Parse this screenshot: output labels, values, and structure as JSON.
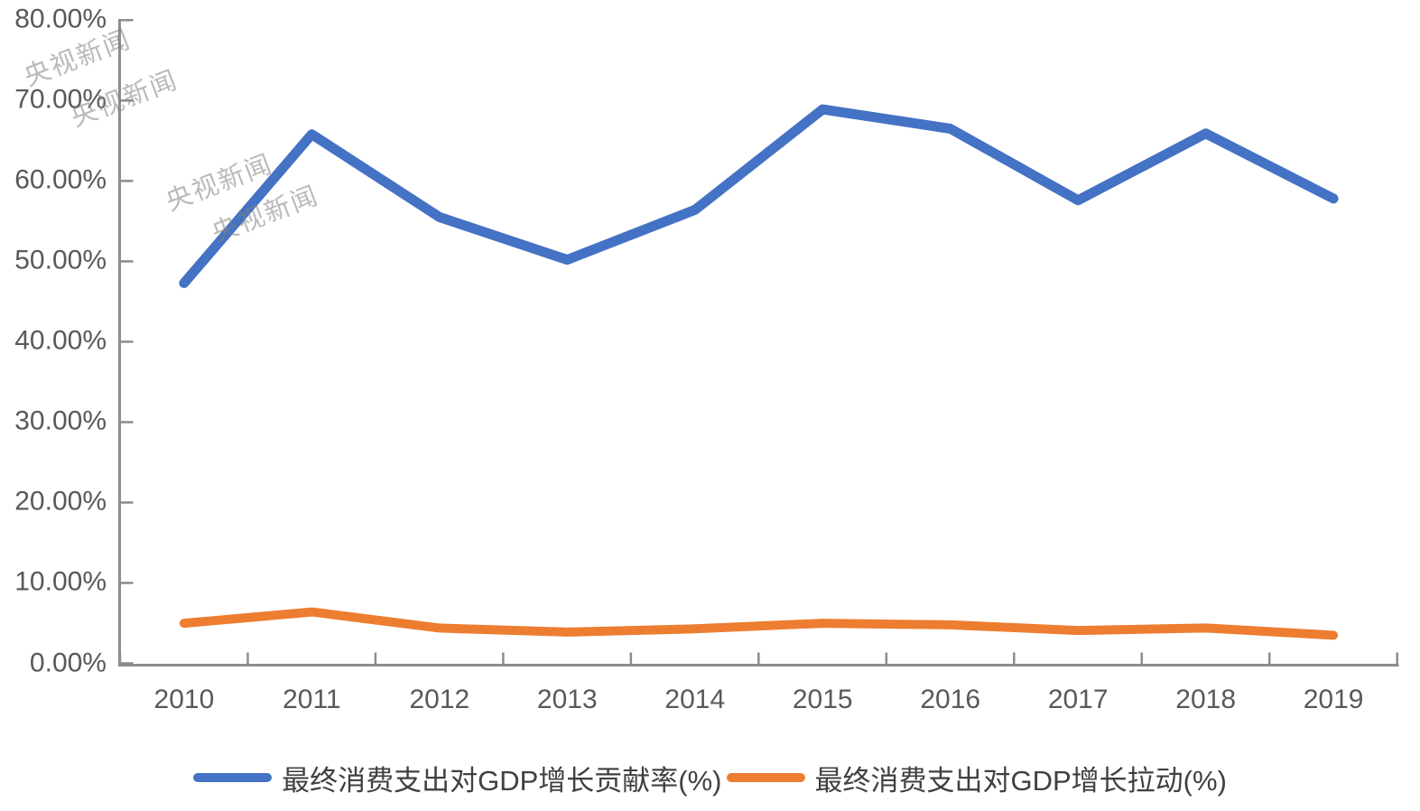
{
  "page": {
    "background": "#ffffff"
  },
  "watermark": {
    "text": "央视新闻"
  },
  "colors": {
    "series_contribution": "#4472C4",
    "series_pull": "#ED7D31",
    "axis_line": "#8C8C8C",
    "tick_label": "#595959",
    "legend_text": "#404040",
    "watermark": "#828282"
  },
  "chart_data": {
    "type": "line",
    "title": "",
    "categories": [
      "2010",
      "2011",
      "2012",
      "2013",
      "2014",
      "2015",
      "2016",
      "2017",
      "2018",
      "2019"
    ],
    "series": [
      {
        "name": "最终消费支出对GDP增长贡献率(%)",
        "color": "#4472C4",
        "values": [
          47.3,
          65.8,
          55.5,
          50.2,
          56.4,
          68.9,
          66.5,
          57.6,
          65.9,
          57.8
        ]
      },
      {
        "name": "最终消费支出对GDP增长拉动(%)",
        "color": "#ED7D31",
        "values": [
          5.0,
          6.4,
          4.4,
          3.9,
          4.3,
          5.0,
          4.8,
          4.1,
          4.4,
          3.5
        ]
      }
    ],
    "y_axis": {
      "min": 0,
      "max": 80,
      "step": 10,
      "tick_labels": [
        "80.00%",
        "70.00%",
        "60.00%",
        "50.00%",
        "40.00%",
        "30.00%",
        "20.00%",
        "10.00%",
        "0.00%"
      ]
    },
    "x_axis": {
      "tick_labels": [
        "2010",
        "2011",
        "2012",
        "2013",
        "2014",
        "2015",
        "2016",
        "2017",
        "2018",
        "2019"
      ]
    },
    "legend_position": "bottom",
    "grid": false
  }
}
